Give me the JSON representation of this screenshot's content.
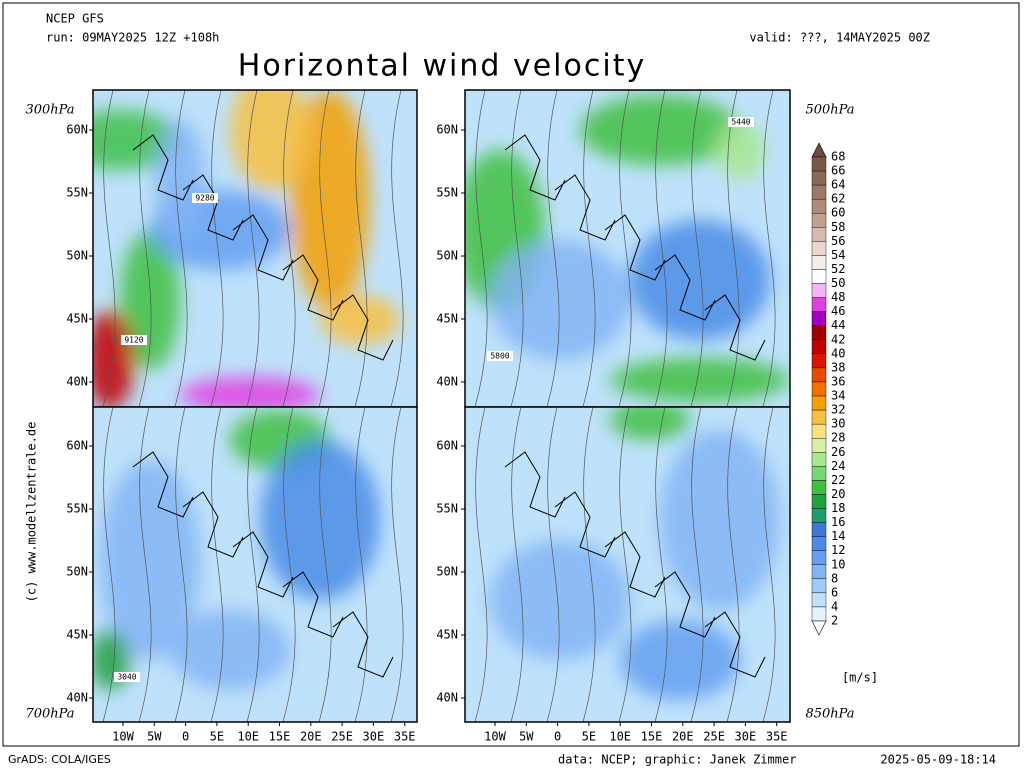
{
  "header": {
    "model": "NCEP GFS",
    "run": "run: 09MAY2025 12Z +108h",
    "valid": "valid: ???, 14MAY2025 00Z",
    "title": "Horizontal wind velocity"
  },
  "panels": [
    {
      "level": "300hPa",
      "lat_labels": [
        "60N",
        "55N",
        "50N",
        "45N",
        "40N"
      ],
      "contour_labels": [
        "9280",
        "9120"
      ]
    },
    {
      "level": "500hPa",
      "lat_labels": [
        "60N",
        "55N",
        "50N",
        "45N",
        "40N"
      ],
      "contour_labels": [
        "5440",
        "5800"
      ]
    },
    {
      "level": "700hPa",
      "lat_labels": [
        "60N",
        "55N",
        "50N",
        "45N",
        "40N"
      ],
      "contour_labels": [
        "3040"
      ]
    },
    {
      "level": "850hPa",
      "lat_labels": [
        "60N",
        "55N",
        "50N",
        "45N",
        "40N"
      ],
      "contour_labels": []
    }
  ],
  "lon_labels": [
    [
      "10W",
      "5W",
      "0",
      "5E",
      "10E",
      "15E",
      "20E",
      "25E",
      "30E",
      "35E"
    ],
    [
      "10W",
      "5W",
      "0",
      "5E",
      "10E",
      "15E",
      "20E",
      "25E",
      "30E",
      "35E"
    ]
  ],
  "colorbar": {
    "levels": [
      "68",
      "66",
      "64",
      "62",
      "60",
      "58",
      "56",
      "54",
      "52",
      "50",
      "48",
      "46",
      "44",
      "42",
      "40",
      "38",
      "36",
      "34",
      "32",
      "30",
      "28",
      "26",
      "24",
      "22",
      "20",
      "18",
      "16",
      "14",
      "12",
      "10",
      "8",
      "6",
      "4",
      "2"
    ],
    "colors": [
      "#6e4b3c",
      "#7d5848",
      "#8c6656",
      "#9e7868",
      "#b08a7a",
      "#c3a092",
      "#d6baae",
      "#e9d8cf",
      "#f7ede8",
      "#ffffff",
      "#f5b4f5",
      "#e040e0",
      "#a000c0",
      "#a00000",
      "#c00000",
      "#dc1400",
      "#e84a00",
      "#f07000",
      "#f4a000",
      "#f8c040",
      "#fce080",
      "#d8f0a0",
      "#a8e890",
      "#78d870",
      "#40c040",
      "#20a040",
      "#1e9e6e",
      "#3c78d8",
      "#4a8ce6",
      "#64a0f0",
      "#82b4f4",
      "#a0cdf8",
      "#bee2fb",
      "#dff2fd",
      "#ffffff"
    ],
    "unit": "[m/s]"
  },
  "footer": {
    "software": "GrADS: COLA/IGES",
    "credits": "data: NCEP; graphic: Janek Zimmer",
    "timestamp": "2025-05-09-18:14",
    "copyright": "(c) www.modellzentrale.de"
  }
}
